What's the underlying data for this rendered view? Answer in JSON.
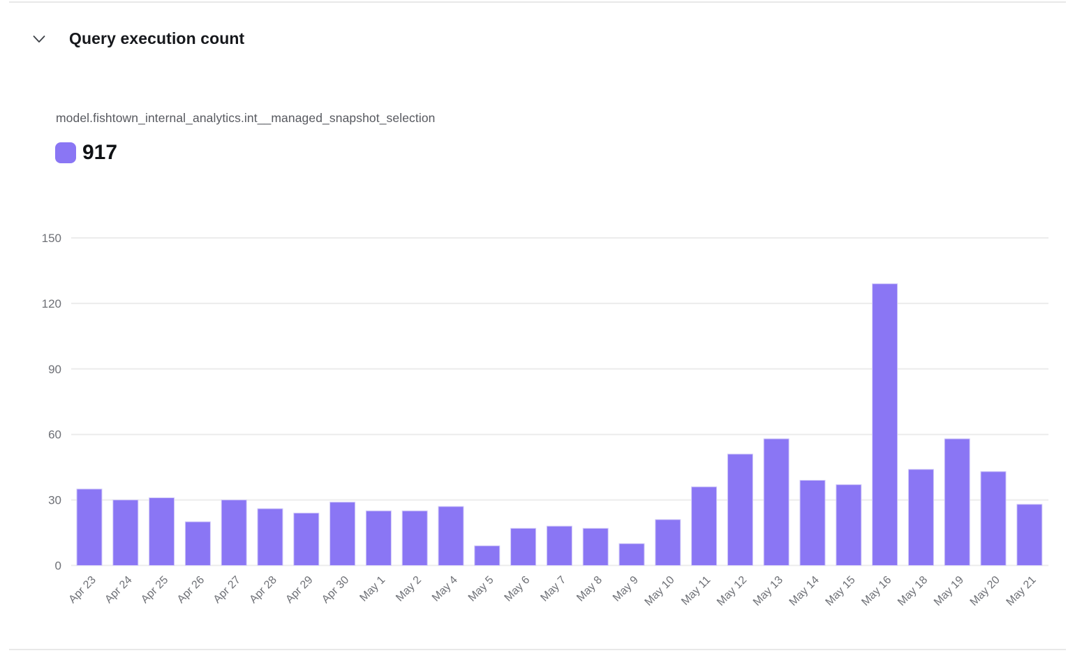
{
  "header": {
    "title": "Query execution count"
  },
  "series_info": {
    "model_name": "model.fishtown_internal_analytics.int__managed_snapshot_selection",
    "total_label": "917"
  },
  "chart_data": {
    "type": "bar",
    "title": "Query execution count",
    "series_name": "model.fishtown_internal_analytics.int__managed_snapshot_selection",
    "series_total": 917,
    "categories": [
      "Apr 23",
      "Apr 24",
      "Apr 25",
      "Apr 26",
      "Apr 27",
      "Apr 28",
      "Apr 29",
      "Apr 30",
      "May 1",
      "May 2",
      "May 4",
      "May 5",
      "May 6",
      "May 7",
      "May 8",
      "May 9",
      "May 10",
      "May 11",
      "May 12",
      "May 13",
      "May 14",
      "May 15",
      "May 16",
      "May 18",
      "May 19",
      "May 20",
      "May 21"
    ],
    "values": [
      35,
      30,
      31,
      20,
      30,
      26,
      24,
      29,
      25,
      25,
      27,
      9,
      17,
      18,
      17,
      10,
      21,
      36,
      51,
      58,
      39,
      37,
      129,
      44,
      58,
      43,
      28
    ],
    "xlabel": "",
    "ylabel": "",
    "ylim": [
      0,
      150
    ],
    "yticks": [
      0,
      30,
      60,
      90,
      120,
      150
    ],
    "grid": true,
    "legend_position": "top-left",
    "x_tick_rotation": -45
  },
  "colors": {
    "bar_fill": "#8A76F4",
    "bar_border": "#D2CBF8",
    "grid_line": "#ECECEC",
    "axis_text": "#6E7076",
    "title_text": "#16181C",
    "subtitle_text": "#57595F",
    "total_text": "#0F1114",
    "divider": "#E8E8E8",
    "chevron": "#3C4046"
  }
}
